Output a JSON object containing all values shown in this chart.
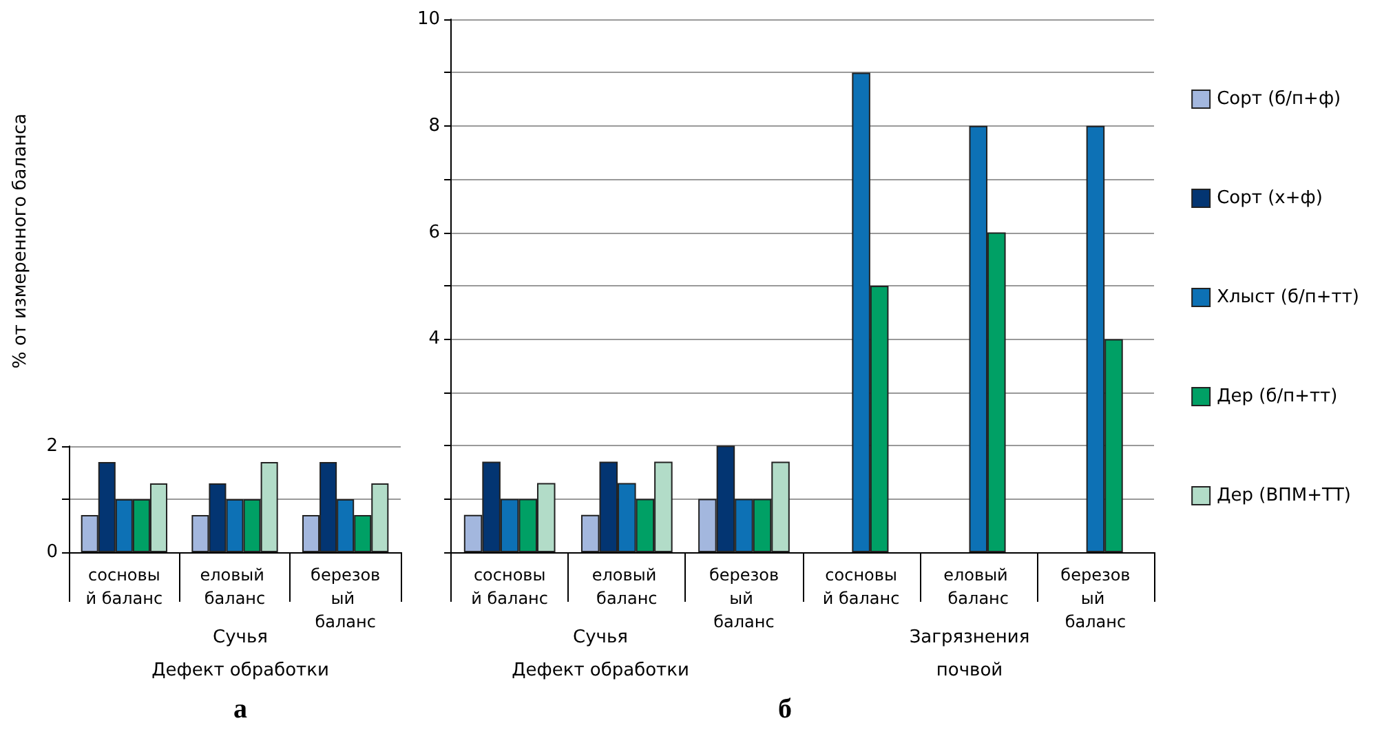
{
  "chart_data": [
    {
      "type": "bar",
      "ylabel": "% от измеренного баланса",
      "categories": [
        "сосновый баланс",
        "еловый баланс",
        "березовый баланс"
      ],
      "series": [
        {
          "color": "#a3b7de",
          "values": [
            0.7,
            0.7,
            0.7
          ]
        },
        {
          "color": "#033572",
          "values": [
            1.7,
            1.3,
            1.7
          ]
        },
        {
          "color": "#0d71b5",
          "values": [
            1,
            1,
            1
          ]
        },
        {
          "color": "#00a065",
          "values": [
            1,
            1,
            0.7
          ]
        },
        {
          "color": "#b2dcc8",
          "values": [
            1.3,
            1.7,
            1.3
          ]
        }
      ],
      "ylim": [
        0,
        2
      ],
      "yticks": [
        0,
        {
          "value": 1,
          "label": null
        },
        2
      ],
      "grid": "y",
      "legend": false,
      "annotations": [
        "Сучья",
        "Дефект обработки",
        "а"
      ]
    },
    {
      "type": "bar",
      "categories": [
        "сосновый баланс",
        "еловый баланс",
        "березовый баланс",
        "сосновый баланс",
        "еловый баланс",
        "березовый баланс"
      ],
      "series": [
        {
          "name": "Сорт (б/п+ф)",
          "color": "#a3b7de",
          "values": [
            0.7,
            0.7,
            1,
            null,
            null,
            null
          ]
        },
        {
          "name": "Сорт (х+ф)",
          "color": "#033572",
          "values": [
            1.7,
            1.7,
            2,
            null,
            null,
            null
          ]
        },
        {
          "name": "Хлыст (б/п+тт)",
          "color": "#0d71b5",
          "values": [
            1,
            1.3,
            1,
            9,
            8,
            8
          ]
        },
        {
          "name": "Дер (б/п+тт)",
          "color": "#00a065",
          "values": [
            1,
            1,
            1,
            5,
            6,
            4
          ]
        },
        {
          "name": "Дер (ВПМ+ТТ)",
          "color": "#b2dcc8",
          "values": [
            1.3,
            1.7,
            1.7,
            null,
            null,
            null
          ]
        }
      ],
      "ylim": [
        0,
        10
      ],
      "yticks": [
        {
          "value": 0,
          "label": null
        },
        {
          "value": 1,
          "label": null
        },
        {
          "value": 2,
          "label": null
        },
        {
          "value": 3,
          "label": null
        },
        4,
        {
          "value": 5,
          "label": null
        },
        6,
        {
          "value": 7,
          "label": null
        },
        8,
        {
          "value": 9,
          "label": null
        },
        10
      ],
      "grid": "y",
      "legend": "right",
      "annotations": [
        "Сучья",
        "Дефект обработки",
        "Загрязнения\nпочвой",
        "б"
      ]
    }
  ]
}
